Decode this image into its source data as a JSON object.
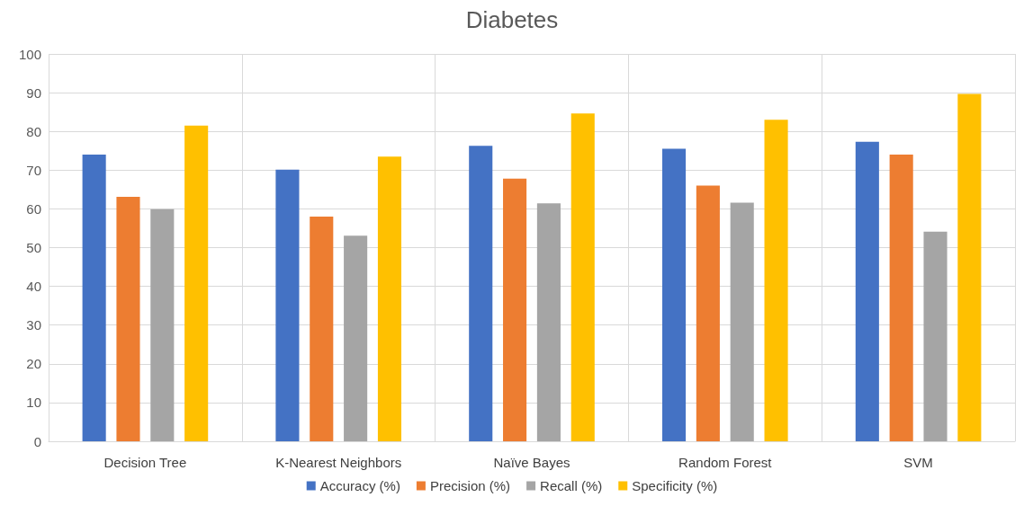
{
  "chart_data": {
    "type": "bar",
    "title": "Diabetes",
    "categories": [
      "Decision Tree",
      "K-Nearest Neighbors",
      "Naïve Bayes",
      "Random Forest",
      "SVM"
    ],
    "series": [
      {
        "name": "Accuracy (%)",
        "color": "#4472c4",
        "values": [
          74,
          70.1,
          76.3,
          75.5,
          77.3
        ]
      },
      {
        "name": "Precision (%)",
        "color": "#ed7d31",
        "values": [
          63.1,
          58,
          67.8,
          66,
          74
        ]
      },
      {
        "name": "Recall (%)",
        "color": "#a5a5a5",
        "values": [
          59.9,
          53.1,
          61.4,
          61.6,
          54.1
        ]
      },
      {
        "name": "Specificity (%)",
        "color": "#ffc000",
        "values": [
          81.5,
          73.5,
          84.6,
          83,
          89.7
        ]
      }
    ],
    "ylim": [
      0,
      100
    ],
    "yticks": [
      0,
      10,
      20,
      30,
      40,
      50,
      60,
      70,
      80,
      90,
      100
    ],
    "grid": true,
    "legend": "bottom"
  }
}
